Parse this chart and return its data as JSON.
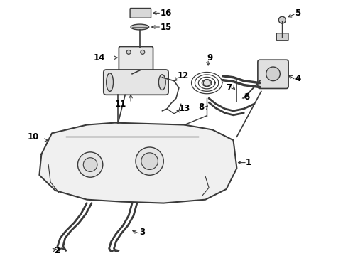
{
  "background_color": "#ffffff",
  "line_color": "#3a3a3a",
  "label_color": "#000000",
  "fig_width": 4.9,
  "fig_height": 3.6,
  "dpi": 100
}
